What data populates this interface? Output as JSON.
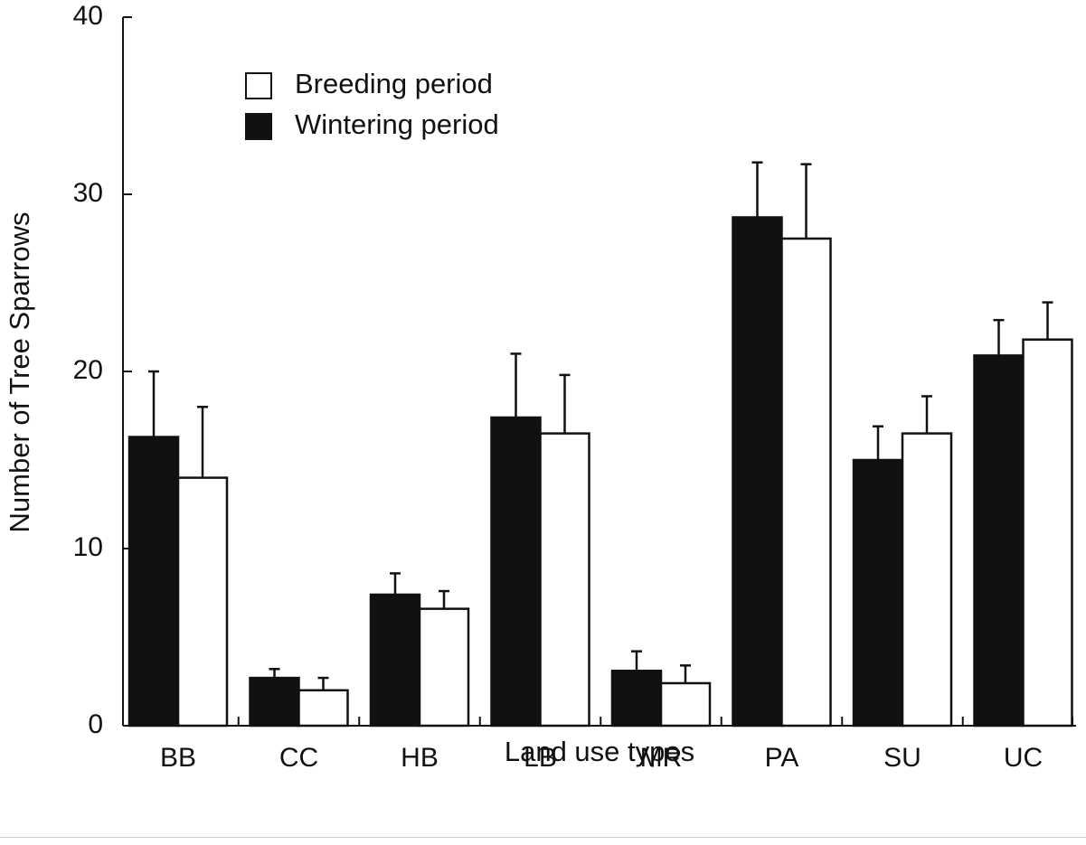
{
  "chart_data": {
    "type": "bar",
    "xlabel": "Land use types",
    "ylabel": "Number of Tree Sparrows",
    "ylim": [
      0,
      40
    ],
    "yticks": [
      0,
      10,
      20,
      30,
      40
    ],
    "categories": [
      "BB",
      "CC",
      "HB",
      "LB",
      "MR",
      "PA",
      "SU",
      "UC"
    ],
    "series": [
      {
        "name": "Wintering period",
        "color": "#111111",
        "values": [
          16.3,
          2.7,
          7.4,
          17.4,
          3.1,
          28.7,
          15.0,
          20.9
        ],
        "errors": [
          3.7,
          0.5,
          1.2,
          3.6,
          1.1,
          3.1,
          1.9,
          2.0
        ]
      },
      {
        "name": "Breeding period",
        "color": "#ffffff",
        "values": [
          14.0,
          2.0,
          6.6,
          16.5,
          2.4,
          27.5,
          16.5,
          21.8
        ],
        "errors": [
          4.0,
          0.7,
          1.0,
          3.3,
          1.0,
          4.2,
          2.1,
          2.1
        ]
      }
    ],
    "legend": {
      "position": "top-left",
      "order": [
        "Breeding period",
        "Wintering period"
      ]
    },
    "grid": false
  }
}
